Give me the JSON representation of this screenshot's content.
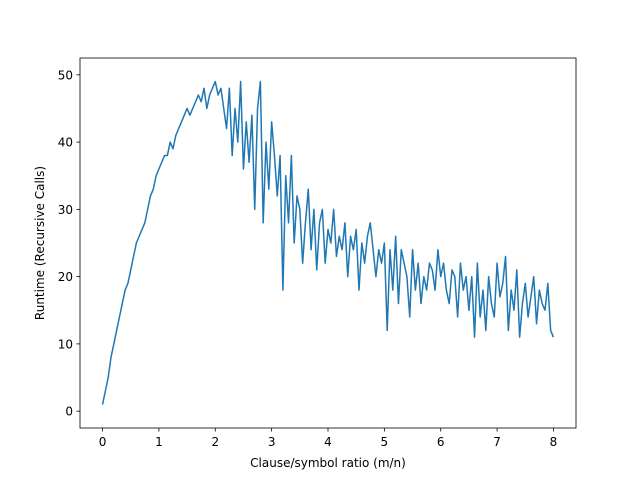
{
  "chart_data": {
    "type": "line",
    "title": "",
    "xlabel": "Clause/symbol ratio (m/n)",
    "ylabel": "Runtime (Recursive Calls)",
    "xlim": [
      -0.4,
      8.4
    ],
    "ylim": [
      -2.5,
      52.5
    ],
    "xticks": [
      0,
      1,
      2,
      3,
      4,
      5,
      6,
      7,
      8
    ],
    "xtick_labels": [
      "0",
      "1",
      "2",
      "3",
      "4",
      "5",
      "6",
      "7",
      "8"
    ],
    "yticks": [
      0,
      10,
      20,
      30,
      40,
      50
    ],
    "ytick_labels": [
      "0",
      "10",
      "20",
      "30",
      "40",
      "50"
    ],
    "grid": false,
    "series": [
      {
        "color": "#1f77b4",
        "x": [
          0.0,
          0.05,
          0.1,
          0.15,
          0.2,
          0.25,
          0.3,
          0.35,
          0.4,
          0.45,
          0.5,
          0.55,
          0.6,
          0.65,
          0.7,
          0.75,
          0.8,
          0.85,
          0.9,
          0.95,
          1.0,
          1.05,
          1.1,
          1.15,
          1.2,
          1.25,
          1.3,
          1.35,
          1.4,
          1.45,
          1.5,
          1.55,
          1.6,
          1.65,
          1.7,
          1.75,
          1.8,
          1.85,
          1.9,
          1.95,
          2.0,
          2.05,
          2.1,
          2.15,
          2.2,
          2.25,
          2.3,
          2.35,
          2.4,
          2.45,
          2.5,
          2.55,
          2.6,
          2.65,
          2.7,
          2.75,
          2.8,
          2.85,
          2.9,
          2.95,
          3.0,
          3.05,
          3.1,
          3.15,
          3.2,
          3.25,
          3.3,
          3.35,
          3.4,
          3.45,
          3.5,
          3.55,
          3.6,
          3.65,
          3.7,
          3.75,
          3.8,
          3.85,
          3.9,
          3.95,
          4.0,
          4.05,
          4.1,
          4.15,
          4.2,
          4.25,
          4.3,
          4.35,
          4.4,
          4.45,
          4.5,
          4.55,
          4.6,
          4.65,
          4.7,
          4.75,
          4.8,
          4.85,
          4.9,
          4.95,
          5.0,
          5.05,
          5.1,
          5.15,
          5.2,
          5.25,
          5.3,
          5.35,
          5.4,
          5.45,
          5.5,
          5.55,
          5.6,
          5.65,
          5.7,
          5.75,
          5.8,
          5.85,
          5.9,
          5.95,
          6.0,
          6.05,
          6.1,
          6.15,
          6.2,
          6.25,
          6.3,
          6.35,
          6.4,
          6.45,
          6.5,
          6.55,
          6.6,
          6.65,
          6.7,
          6.75,
          6.8,
          6.85,
          6.9,
          6.95,
          7.0,
          7.05,
          7.1,
          7.15,
          7.2,
          7.25,
          7.3,
          7.35,
          7.4,
          7.45,
          7.5,
          7.55,
          7.6,
          7.65,
          7.7,
          7.75,
          7.8,
          7.85,
          7.9,
          7.95,
          8.0
        ],
        "y": [
          1,
          3,
          5,
          8,
          10,
          12,
          14,
          16,
          18,
          19,
          21,
          23,
          25,
          26,
          27,
          28,
          30,
          32,
          33,
          35,
          36,
          37,
          38,
          38,
          40,
          39,
          41,
          42,
          43,
          44,
          45,
          44,
          45,
          46,
          47,
          46,
          48,
          45,
          47,
          48,
          49,
          47,
          48,
          45,
          42,
          48,
          38,
          45,
          40,
          49,
          36,
          43,
          37,
          44,
          30,
          45,
          49,
          28,
          40,
          33,
          43,
          38,
          32,
          38,
          18,
          35,
          28,
          38,
          25,
          32,
          30,
          22,
          28,
          33,
          24,
          30,
          21,
          28,
          30,
          22,
          27,
          25,
          30,
          23,
          26,
          24,
          28,
          20,
          26,
          24,
          27,
          18,
          25,
          22,
          26,
          28,
          24,
          20,
          24,
          22,
          25,
          12,
          24,
          18,
          26,
          16,
          24,
          22,
          20,
          14,
          24,
          18,
          22,
          16,
          20,
          18,
          22,
          21,
          18,
          24,
          20,
          22,
          18,
          16,
          21,
          20,
          14,
          22,
          18,
          20,
          15,
          20,
          11,
          22,
          14,
          18,
          12,
          20,
          16,
          14,
          22,
          17,
          19,
          23,
          12,
          18,
          15,
          21,
          11,
          16,
          19,
          14,
          17,
          20,
          13,
          18,
          16,
          15,
          19,
          12,
          11
        ]
      }
    ]
  }
}
